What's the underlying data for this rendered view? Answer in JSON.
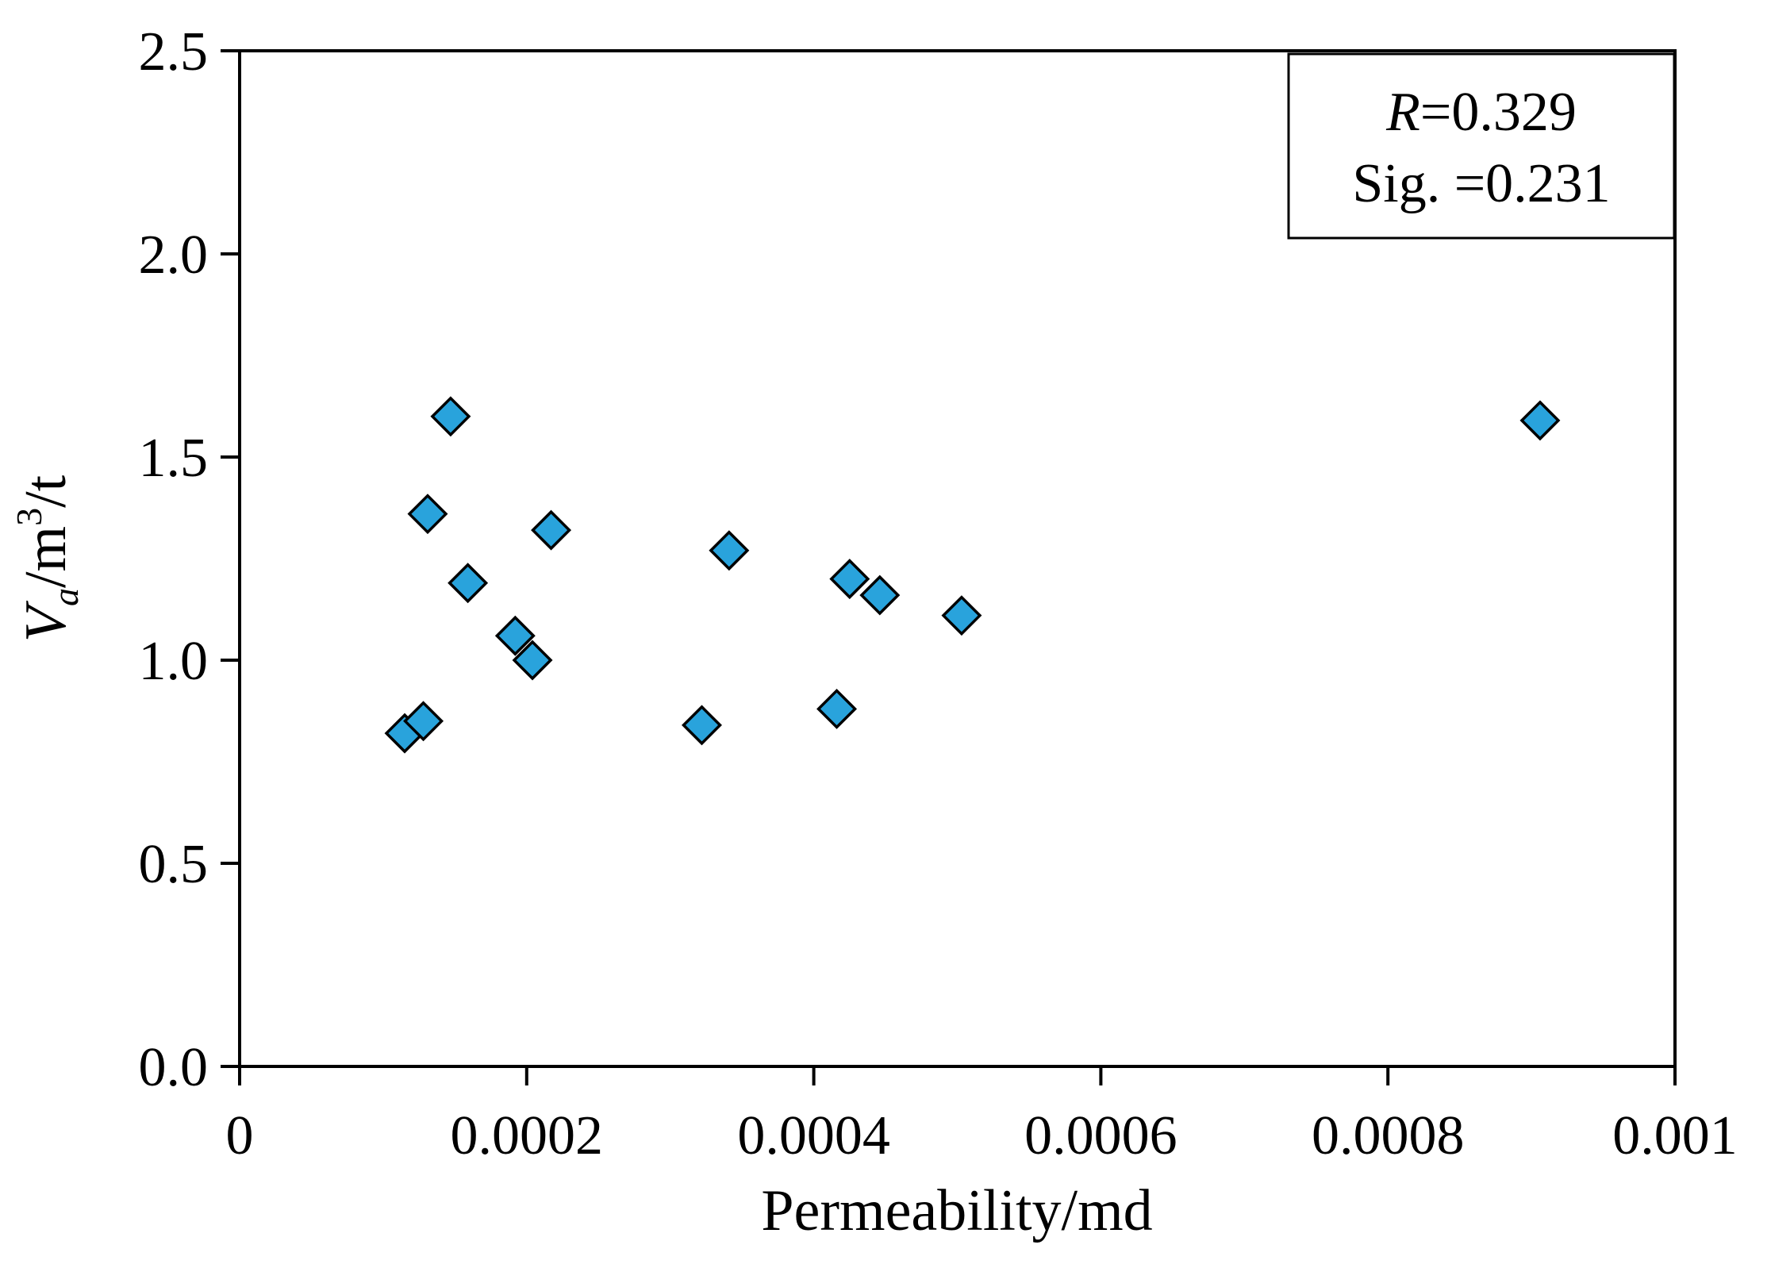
{
  "chart_data": {
    "type": "scatter",
    "title": "",
    "xlabel": "Permeability/md",
    "ylabel": {
      "main": "V",
      "sub": "a",
      "unit_pre": "/m",
      "unit_sup": "3",
      "unit_post": "/t"
    },
    "xlim": [
      0,
      0.001
    ],
    "ylim": [
      0,
      2.5
    ],
    "xticks": [
      "0",
      "0.0002",
      "0.0004",
      "0.0006",
      "0.0008",
      "0.001"
    ],
    "yticks": [
      "0.0",
      "0.5",
      "1.0",
      "1.5",
      "2.0",
      "2.5"
    ],
    "xtick_values": [
      0,
      0.0002,
      0.0004,
      0.0006,
      0.0008,
      0.001
    ],
    "ytick_values": [
      0,
      0.5,
      1.0,
      1.5,
      2.0,
      2.5
    ],
    "grid": false,
    "marker": {
      "shape": "diamond",
      "fill": "#29A3DC",
      "stroke": "#000000"
    },
    "series": [
      {
        "points": [
          {
            "x": 0.000115,
            "y": 0.82
          },
          {
            "x": 0.000128,
            "y": 0.85
          },
          {
            "x": 0.000131,
            "y": 1.36
          },
          {
            "x": 0.000147,
            "y": 1.6
          },
          {
            "x": 0.000159,
            "y": 1.19
          },
          {
            "x": 0.000192,
            "y": 1.06
          },
          {
            "x": 0.000204,
            "y": 1.0
          },
          {
            "x": 0.000217,
            "y": 1.32
          },
          {
            "x": 0.000322,
            "y": 0.84
          },
          {
            "x": 0.000341,
            "y": 1.27
          },
          {
            "x": 0.000416,
            "y": 0.88
          },
          {
            "x": 0.000425,
            "y": 1.2
          },
          {
            "x": 0.000446,
            "y": 1.16
          },
          {
            "x": 0.000503,
            "y": 1.11
          },
          {
            "x": 0.000906,
            "y": 1.59
          }
        ]
      }
    ],
    "annotation": {
      "r_label": "R",
      "r_value": "=0.329",
      "sig_text": "Sig. =0.231"
    }
  }
}
